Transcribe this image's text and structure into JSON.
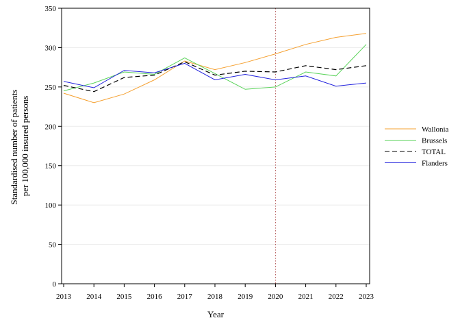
{
  "chart_data": {
    "type": "line",
    "title": "",
    "xlabel": "Year",
    "ylabel_lines": [
      "Standardised number of patients",
      "per 100,000 insured persons"
    ],
    "x": [
      2013,
      2014,
      2015,
      2016,
      2017,
      2018,
      2019,
      2020,
      2021,
      2022,
      2023
    ],
    "ylim": [
      0,
      350
    ],
    "yticks": [
      0,
      50,
      100,
      150,
      200,
      250,
      300,
      350
    ],
    "grid": true,
    "reference_line_x": 2020,
    "legend_position": "right",
    "series": [
      {
        "name": "Wallonia",
        "color": "#f5a030",
        "dash": "solid",
        "values": [
          242,
          230,
          241,
          259,
          283,
          272,
          281,
          292,
          304,
          313,
          318
        ]
      },
      {
        "name": "Brussels",
        "color": "#5ad35a",
        "dash": "solid",
        "values": [
          245,
          255,
          269,
          266,
          287,
          267,
          247,
          250,
          269,
          264,
          304
        ]
      },
      {
        "name": "TOTAL",
        "color": "#000000",
        "dash": "dashed",
        "values": [
          252,
          244,
          262,
          265,
          282,
          265,
          270,
          269,
          277,
          272,
          277
        ]
      },
      {
        "name": "Flanders",
        "color": "#2020dd",
        "dash": "solid",
        "values": [
          257,
          249,
          271,
          268,
          280,
          259,
          266,
          259,
          264,
          251,
          255
        ]
      }
    ]
  }
}
